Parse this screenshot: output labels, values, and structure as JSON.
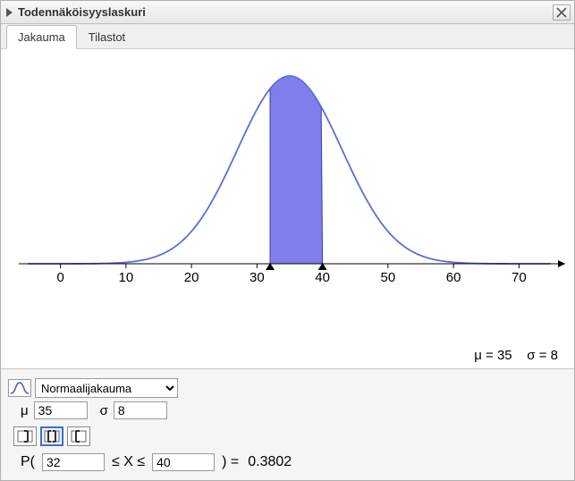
{
  "window": {
    "title": "Todennäköisyyslaskuri"
  },
  "tabs": {
    "items": [
      {
        "label": "Jakauma",
        "active": true
      },
      {
        "label": "Tilastot",
        "active": false
      }
    ]
  },
  "chart": {
    "type": "normal-density",
    "mu": 35,
    "sigma": 8,
    "x_min": -5,
    "x_max": 75,
    "ticks": [
      0,
      10,
      20,
      30,
      40,
      50,
      60,
      70
    ],
    "fill_from": 32,
    "fill_to": 40,
    "curve_color": "#5a6fd6",
    "fill_color": "#6a66ea",
    "fill_opacity": 0.85,
    "axis_color": "#000000",
    "background": "#ffffff",
    "tick_fontsize": 15,
    "param_text_mu": "μ = 35",
    "param_text_sigma": "σ = 8"
  },
  "controls": {
    "distribution_options": [
      "Normaalijakauma"
    ],
    "distribution_selected": "Normaalijakauma",
    "mu_label": "μ",
    "mu_value": "35",
    "sigma_label": "σ",
    "sigma_value": "8",
    "interval_mode": "between",
    "prob_prefix": "P(",
    "lower": "32",
    "rel1": "≤ X ≤",
    "upper": "40",
    "prob_suffix": ") =",
    "result": "0.3802"
  }
}
